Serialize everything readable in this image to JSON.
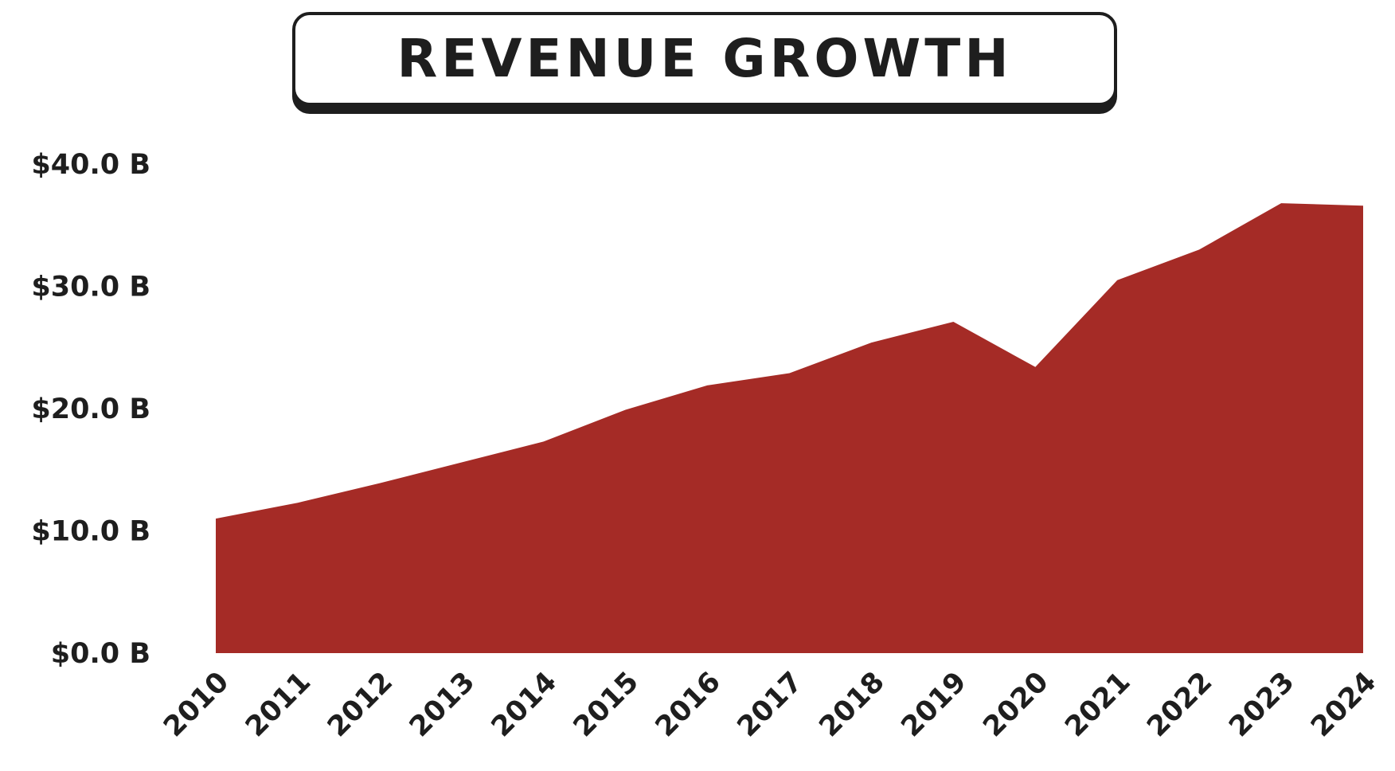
{
  "chart_data": {
    "type": "area",
    "title": "REVENUE GROWTH",
    "xlabel": "",
    "ylabel": "",
    "x": [
      "2010",
      "2011",
      "2012",
      "2013",
      "2014",
      "2015",
      "2016",
      "2017",
      "2018",
      "2019",
      "2020",
      "2021",
      "2022",
      "2023",
      "2024"
    ],
    "series": [
      {
        "values": [
          11.0,
          12.3,
          13.9,
          15.6,
          17.3,
          19.9,
          21.9,
          22.9,
          25.4,
          27.1,
          23.4,
          30.5,
          33.0,
          36.8,
          36.6
        ]
      }
    ],
    "ylim": [
      0,
      40
    ],
    "yticks": [
      "$0.0 B",
      "$10.0 B",
      "$20.0 B",
      "$30.0 B",
      "$40.0 B"
    ],
    "grid": false,
    "colors": {
      "area": "#a52b26",
      "text": "#1e1e1e"
    }
  }
}
